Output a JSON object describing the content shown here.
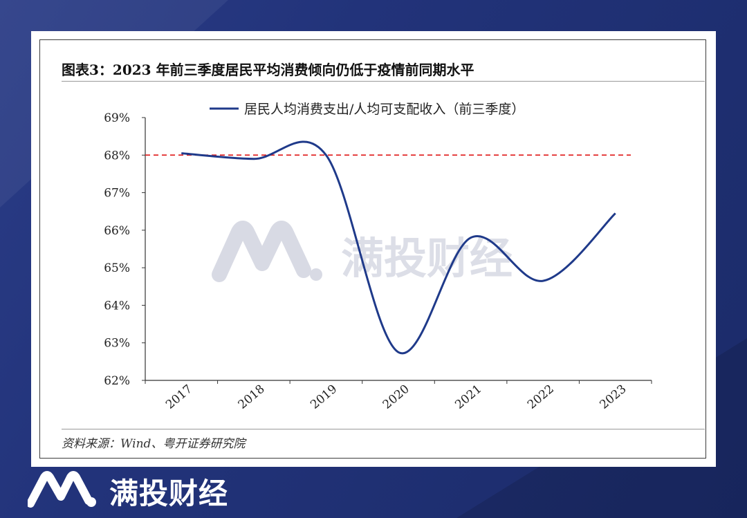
{
  "title": "图表3：2023 年前三季度居民平均消费倾向仍低于疫情前同期水平",
  "source": "资料来源：Wind、粤开证券研究院",
  "watermark": "满投财经",
  "footer_brand": "满投财经",
  "chart_data": {
    "type": "line",
    "categories": [
      "2017",
      "2018",
      "2019",
      "2020",
      "2021",
      "2022",
      "2023"
    ],
    "series": [
      {
        "name": "居民人均消费支出/人均可支配收入（前三季度）",
        "values": [
          68.05,
          67.9,
          68.0,
          62.75,
          65.8,
          64.65,
          66.45
        ],
        "color": "#1f3a8a"
      }
    ],
    "reference_line": {
      "value": 68,
      "color": "#e02020",
      "style": "dashed"
    },
    "ylim": [
      62,
      69
    ],
    "yticks": [
      "62%",
      "63%",
      "64%",
      "65%",
      "66%",
      "67%",
      "68%",
      "69%"
    ],
    "legend_position": "top",
    "grid": false
  }
}
